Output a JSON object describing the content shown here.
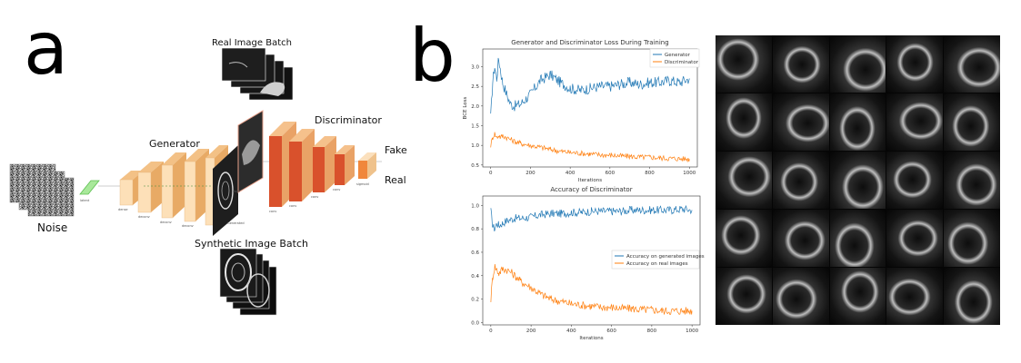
{
  "panel_a": {
    "letter": "a",
    "labels": {
      "noise": "Noise",
      "generator": "Generator",
      "real_batch": "Real Image Batch",
      "synthetic_batch": "Synthetic Image Batch",
      "discriminator": "Discriminator",
      "fake": "Fake",
      "real": "Real"
    },
    "colors": {
      "layer_face": "#fde0b8",
      "layer_side": "#f3c186",
      "disc_face": "#d9512c"
    }
  },
  "panel_b": {
    "letter": "b",
    "image_grid": {
      "rows": 5,
      "cols": 5
    }
  },
  "chart_data": [
    {
      "type": "line",
      "title": "Generator and Discriminator Loss During Training",
      "xlabel": "Iterations",
      "ylabel": "BCE Loss",
      "xlim": [
        -40,
        1040
      ],
      "ylim": [
        0.45,
        3.45
      ],
      "xticks": [
        0,
        200,
        400,
        600,
        800,
        1000
      ],
      "yticks": [
        0.5,
        1.0,
        1.5,
        2.0,
        2.5,
        3.0
      ],
      "ytick_labels": [
        "0.5",
        "1.0",
        "1.5",
        "2.0",
        "2.5",
        "3.0"
      ],
      "legend_position": "top-right",
      "x": [
        0,
        10,
        20,
        30,
        40,
        50,
        60,
        80,
        100,
        120,
        150,
        200,
        250,
        300,
        350,
        400,
        450,
        500,
        550,
        600,
        650,
        700,
        750,
        800,
        850,
        900,
        950,
        1000
      ],
      "series": [
        {
          "name": "Generator",
          "color": "#1f77b4",
          "values": [
            1.7,
            2.6,
            3.0,
            2.7,
            3.2,
            2.9,
            2.6,
            2.3,
            2.05,
            2.0,
            2.05,
            2.3,
            2.65,
            2.8,
            2.6,
            2.45,
            2.4,
            2.45,
            2.5,
            2.5,
            2.55,
            2.6,
            2.55,
            2.6,
            2.6,
            2.65,
            2.6,
            2.7
          ]
        },
        {
          "name": "Discriminator",
          "color": "#ff7f0e",
          "values": [
            1.0,
            1.2,
            1.3,
            1.2,
            1.25,
            1.2,
            1.25,
            1.2,
            1.15,
            1.1,
            1.05,
            1.0,
            0.95,
            0.9,
            0.85,
            0.82,
            0.8,
            0.78,
            0.76,
            0.75,
            0.73,
            0.72,
            0.7,
            0.7,
            0.68,
            0.67,
            0.66,
            0.65
          ]
        }
      ]
    },
    {
      "type": "line",
      "title": "Accuracy of Discriminator",
      "xlabel": "Iterations",
      "ylabel": "",
      "xlim": [
        -40,
        1040
      ],
      "ylim": [
        -0.02,
        1.08
      ],
      "xticks": [
        0,
        200,
        400,
        600,
        800,
        1000
      ],
      "yticks": [
        0.0,
        0.2,
        0.4,
        0.6,
        0.8,
        1.0
      ],
      "ytick_labels": [
        "0.0",
        "0.2",
        "0.4",
        "0.6",
        "0.8",
        "1.0"
      ],
      "legend_position": "right",
      "x": [
        0,
        10,
        20,
        30,
        40,
        50,
        60,
        80,
        100,
        120,
        150,
        200,
        250,
        300,
        350,
        400,
        450,
        500,
        550,
        600,
        650,
        700,
        750,
        800,
        850,
        900,
        950,
        1000
      ],
      "series": [
        {
          "name": "Accuracy on generated images",
          "color": "#1f77b4",
          "values": [
            0.95,
            0.82,
            0.8,
            0.85,
            0.83,
            0.84,
            0.85,
            0.87,
            0.88,
            0.89,
            0.89,
            0.9,
            0.92,
            0.93,
            0.93,
            0.94,
            0.94,
            0.95,
            0.95,
            0.95,
            0.95,
            0.96,
            0.96,
            0.96,
            0.96,
            0.96,
            0.97,
            0.96
          ]
        },
        {
          "name": "Accuracy on real images",
          "color": "#ff7f0e",
          "values": [
            0.2,
            0.4,
            0.48,
            0.45,
            0.42,
            0.44,
            0.46,
            0.45,
            0.43,
            0.4,
            0.35,
            0.3,
            0.24,
            0.2,
            0.18,
            0.16,
            0.15,
            0.14,
            0.13,
            0.13,
            0.12,
            0.12,
            0.11,
            0.11,
            0.1,
            0.1,
            0.1,
            0.1
          ]
        }
      ]
    }
  ]
}
